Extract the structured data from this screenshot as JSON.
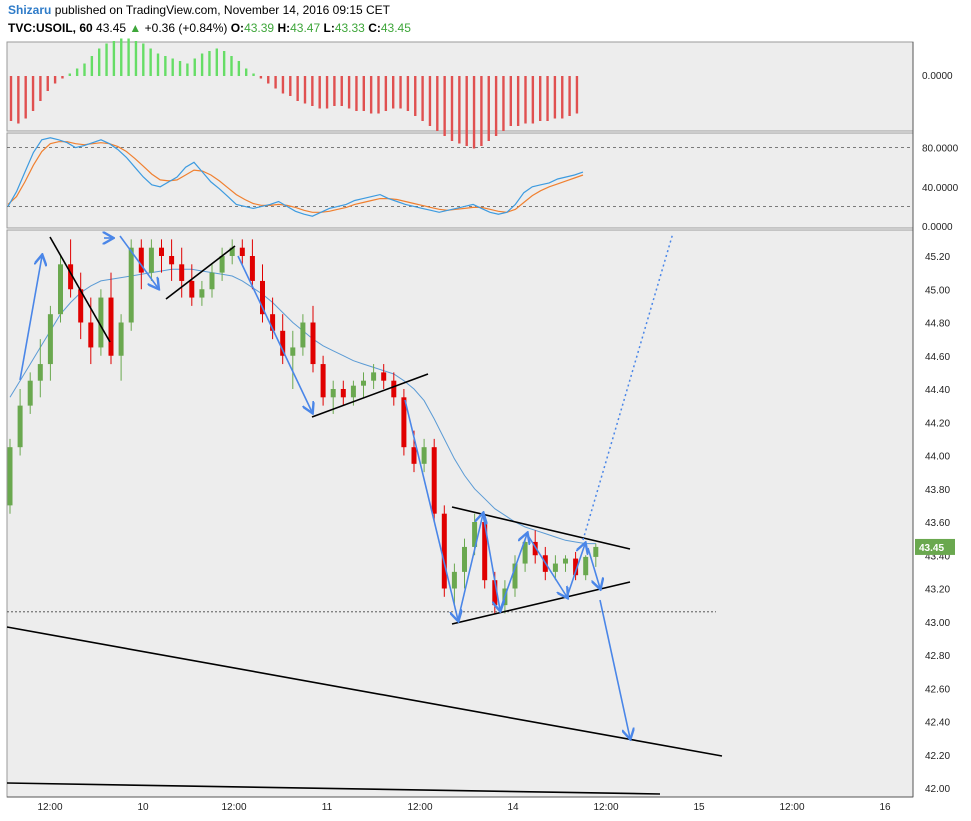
{
  "header": {
    "author": "Shizaru",
    "published": "published on TradingView.com, November 14, 2016 09:15 CET",
    "symbol": "TVC:USOIL, 60",
    "last": "43.45",
    "change": "+0.36 (+0.84%)",
    "o_label": "O:",
    "o": "43.39",
    "h_label": "H:",
    "h": "43.47",
    "l_label": "L:",
    "l": "43.33",
    "c_label": "C:",
    "c": "43.45"
  },
  "colors": {
    "bull": "#6aa84f",
    "bear": "#e00000",
    "ma": "#5b9bd5",
    "osc_fast": "#3d9be0",
    "osc_slow": "#f08030",
    "hist_pos": "#66dd66",
    "hist_neg": "#e05050",
    "arrow": "#4a86e8",
    "price_tag": "#6aa84f"
  },
  "chart_data": [
    {
      "type": "bar",
      "panel": "histogram-oscillator",
      "ylim": [
        -3,
        1.8
      ],
      "y_ticks": [
        "0.0000"
      ],
      "values": [
        -1.8,
        -1.9,
        -1.7,
        -1.4,
        -1.0,
        -0.6,
        -0.3,
        -0.1,
        0.1,
        0.3,
        0.5,
        0.8,
        1.1,
        1.3,
        1.4,
        1.5,
        1.5,
        1.4,
        1.3,
        1.1,
        0.9,
        0.8,
        0.7,
        0.6,
        0.5,
        0.7,
        0.9,
        1.0,
        1.1,
        1.0,
        0.8,
        0.6,
        0.3,
        0.1,
        -0.1,
        -0.3,
        -0.5,
        -0.7,
        -0.8,
        -1.0,
        -1.1,
        -1.2,
        -1.3,
        -1.3,
        -1.2,
        -1.2,
        -1.3,
        -1.4,
        -1.4,
        -1.5,
        -1.5,
        -1.4,
        -1.3,
        -1.3,
        -1.4,
        -1.6,
        -1.8,
        -2.0,
        -2.2,
        -2.4,
        -2.6,
        -2.7,
        -2.8,
        -2.9,
        -2.8,
        -2.6,
        -2.4,
        -2.2,
        -2.0,
        -2.0,
        -1.9,
        -1.9,
        -1.8,
        -1.8,
        -1.7,
        -1.7,
        -1.6,
        -1.5
      ]
    },
    {
      "type": "line",
      "panel": "stochastic",
      "ylim": [
        0,
        100
      ],
      "y_ticks": [
        "80.0000",
        "40.0000",
        "0.0000"
      ],
      "levels": [
        80,
        20
      ],
      "series": [
        {
          "values": [
            20,
            35,
            55,
            75,
            88,
            90,
            88,
            85,
            80,
            82,
            85,
            88,
            84,
            78,
            70,
            60,
            50,
            42,
            40,
            45,
            50,
            60,
            65,
            55,
            45,
            38,
            30,
            22,
            20,
            18,
            20,
            22,
            25,
            20,
            15,
            12,
            10,
            14,
            18,
            20,
            22,
            26,
            28,
            30,
            32,
            28,
            25,
            22,
            20,
            18,
            16,
            14,
            16,
            18,
            20,
            22,
            18,
            14,
            12,
            14,
            22,
            34,
            40,
            42,
            44,
            48,
            50,
            52,
            55
          ]
        },
        {
          "values": [
            22,
            30,
            45,
            62,
            76,
            84,
            86,
            86,
            84,
            83,
            84,
            85,
            84,
            81,
            76,
            69,
            61,
            53,
            47,
            46,
            47,
            52,
            57,
            56,
            52,
            46,
            39,
            32,
            27,
            23,
            21,
            21,
            22,
            21,
            19,
            16,
            14,
            14,
            15,
            17,
            19,
            22,
            24,
            26,
            28,
            28,
            27,
            25,
            23,
            21,
            19,
            17,
            16,
            17,
            18,
            19,
            19,
            17,
            15,
            14,
            17,
            24,
            31,
            36,
            40,
            43,
            46,
            49,
            52
          ]
        }
      ]
    },
    {
      "type": "candlestick",
      "panel": "price",
      "ylim": [
        41.98,
        45.3
      ],
      "y_ticks": [
        "45.20",
        "45.00",
        "44.80",
        "44.60",
        "44.40",
        "44.20",
        "44.00",
        "43.80",
        "43.60",
        "43.40",
        "43.20",
        "43.00",
        "42.80",
        "42.60",
        "42.40",
        "42.20",
        "42.00"
      ],
      "x_ticks": [
        "12:00",
        "10",
        "12:00",
        "11",
        "12:00",
        "14",
        "12:00",
        "15",
        "12:00",
        "16"
      ],
      "last_price": "43.45",
      "support_level": 43.06,
      "ohlc": [
        [
          43.7,
          44.1,
          43.65,
          44.05
        ],
        [
          44.05,
          44.4,
          44.0,
          44.3
        ],
        [
          44.3,
          44.5,
          44.25,
          44.45
        ],
        [
          44.45,
          44.7,
          44.35,
          44.55
        ],
        [
          44.55,
          44.9,
          44.45,
          44.85
        ],
        [
          44.85,
          45.2,
          44.8,
          45.15
        ],
        [
          45.15,
          45.3,
          44.95,
          45.0
        ],
        [
          45.0,
          45.1,
          44.7,
          44.8
        ],
        [
          44.8,
          44.95,
          44.55,
          44.65
        ],
        [
          44.65,
          45.0,
          44.6,
          44.95
        ],
        [
          44.95,
          45.1,
          44.55,
          44.6
        ],
        [
          44.6,
          44.85,
          44.45,
          44.8
        ],
        [
          44.8,
          45.3,
          44.75,
          45.25
        ],
        [
          45.25,
          45.3,
          45.0,
          45.1
        ],
        [
          45.1,
          45.3,
          45.05,
          45.25
        ],
        [
          45.25,
          45.3,
          45.1,
          45.2
        ],
        [
          45.2,
          45.3,
          45.05,
          45.15
        ],
        [
          45.15,
          45.25,
          44.95,
          45.05
        ],
        [
          45.05,
          45.15,
          44.9,
          44.95
        ],
        [
          44.95,
          45.05,
          44.9,
          45.0
        ],
        [
          45.0,
          45.15,
          44.95,
          45.1
        ],
        [
          45.1,
          45.25,
          45.05,
          45.2
        ],
        [
          45.2,
          45.3,
          45.15,
          45.25
        ],
        [
          45.25,
          45.3,
          45.15,
          45.2
        ],
        [
          45.2,
          45.3,
          45.0,
          45.05
        ],
        [
          45.05,
          45.15,
          44.8,
          44.85
        ],
        [
          44.85,
          44.95,
          44.7,
          44.75
        ],
        [
          44.75,
          44.85,
          44.55,
          44.6
        ],
        [
          44.6,
          44.75,
          44.4,
          44.65
        ],
        [
          44.65,
          44.85,
          44.6,
          44.8
        ],
        [
          44.8,
          44.9,
          44.5,
          44.55
        ],
        [
          44.55,
          44.6,
          44.3,
          44.35
        ],
        [
          44.35,
          44.45,
          44.25,
          44.4
        ],
        [
          44.4,
          44.45,
          44.3,
          44.35
        ],
        [
          44.35,
          44.45,
          44.3,
          44.42
        ],
        [
          44.42,
          44.5,
          44.35,
          44.45
        ],
        [
          44.45,
          44.55,
          44.4,
          44.5
        ],
        [
          44.5,
          44.55,
          44.4,
          44.45
        ],
        [
          44.45,
          44.5,
          44.3,
          44.35
        ],
        [
          44.35,
          44.4,
          44.0,
          44.05
        ],
        [
          44.05,
          44.15,
          43.9,
          43.95
        ],
        [
          43.95,
          44.1,
          43.9,
          44.05
        ],
        [
          44.05,
          44.1,
          43.6,
          43.65
        ],
        [
          43.65,
          43.7,
          43.15,
          43.2
        ],
        [
          43.2,
          43.35,
          43.1,
          43.3
        ],
        [
          43.3,
          43.5,
          43.2,
          43.45
        ],
        [
          43.45,
          43.65,
          43.4,
          43.6
        ],
        [
          43.6,
          43.65,
          43.2,
          43.25
        ],
        [
          43.25,
          43.3,
          43.05,
          43.1
        ],
        [
          43.1,
          43.25,
          43.05,
          43.2
        ],
        [
          43.2,
          43.4,
          43.15,
          43.35
        ],
        [
          43.35,
          43.5,
          43.3,
          43.48
        ],
        [
          43.48,
          43.55,
          43.35,
          43.4
        ],
        [
          43.4,
          43.45,
          43.25,
          43.3
        ],
        [
          43.3,
          43.4,
          43.25,
          43.35
        ],
        [
          43.35,
          43.4,
          43.3,
          43.38
        ],
        [
          43.38,
          43.42,
          43.25,
          43.28
        ],
        [
          43.28,
          43.4,
          43.25,
          43.39
        ],
        [
          43.39,
          43.47,
          43.33,
          43.45
        ]
      ],
      "ma": [
        44.35,
        44.45,
        44.55,
        44.65,
        44.75,
        44.85,
        44.92,
        44.98,
        45.02,
        45.05,
        45.06,
        45.07,
        45.08,
        45.09,
        45.1,
        45.11,
        45.12,
        45.12,
        45.12,
        45.11,
        45.1,
        45.09,
        45.08,
        45.05,
        45.01,
        44.97,
        44.92,
        44.86,
        44.8,
        44.75,
        44.7,
        44.66,
        44.63,
        44.6,
        44.57,
        44.55,
        44.53,
        44.51,
        44.49,
        44.45,
        44.4,
        44.33,
        44.22,
        44.1,
        43.98,
        43.88,
        43.8,
        43.74,
        43.68,
        43.64,
        43.6,
        43.57,
        43.55,
        43.53,
        43.51,
        43.49,
        43.48,
        43.47,
        43.47
      ]
    }
  ]
}
